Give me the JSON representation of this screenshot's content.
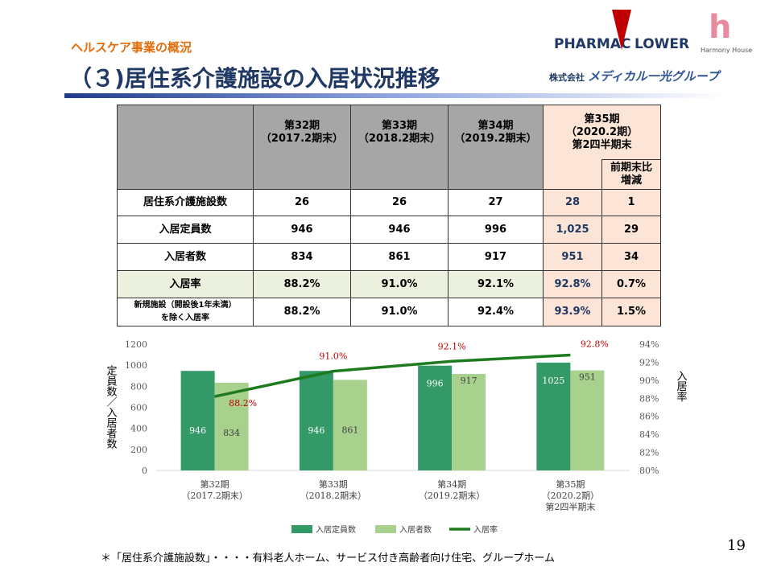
{
  "header": {
    "section": "ヘルスケア事業の概況",
    "title": "（３)居住系介護施設の入居状況推移"
  },
  "logos": {
    "pharmacy": "PHARMAC",
    "flower": "LOWER",
    "harmony": "Harmony House",
    "company": "株式会社",
    "group": "メディカル一光グループ"
  },
  "table": {
    "header": [
      "",
      "第32期\n（2017.2期末）",
      "第33期\n（2018.2期末）",
      "第34期\n（2019.2期末）",
      "第35期\n（2020.2期）\n第2四半期末"
    ],
    "subheader": "前期末比\n増減",
    "rows": [
      [
        "居住系介護施設数",
        "26",
        "26",
        "27",
        "28",
        "1"
      ],
      [
        "入居定員数",
        "946",
        "946",
        "996",
        "1,025",
        "29"
      ],
      [
        "入居者数",
        "834",
        "861",
        "917",
        "951",
        "34"
      ],
      [
        "入居率",
        "88.2%",
        "91.0%",
        "92.1%",
        "92.8%",
        "0.7%"
      ],
      [
        "新規施設（開設後1年未満）\nを除く入居率",
        "88.2%",
        "91.0%",
        "92.4%",
        "93.9%",
        "1.5%"
      ]
    ]
  },
  "chart_data": {
    "type": "bar_line",
    "categories": [
      "第32期\n（2017.2期末）",
      "第33期\n（2018.2期末）",
      "第34期\n（2019.2期末）",
      "第35期\n（2020.2期）\n第2四半期末"
    ],
    "y_label": "定員数／入居者数",
    "y2_label": "入居率",
    "series": [
      {
        "name": "入居定員数",
        "color": "#339966",
        "type": "bar",
        "values": [
          946,
          946,
          996,
          1025
        ]
      },
      {
        "name": "入居者数",
        "color": "#a9d18e",
        "type": "bar",
        "values": [
          834,
          861,
          917,
          951
        ]
      },
      {
        "name": "入居率",
        "color": "#1e7a1e",
        "type": "line",
        "axis": "y2",
        "values": [
          88.2,
          91.0,
          92.1,
          92.8
        ],
        "value_labels": [
          "88.2%",
          "91.0%",
          "92.1%",
          "92.8%"
        ]
      }
    ],
    "ylim": [
      0,
      1200
    ],
    "yticks": [
      0,
      200,
      400,
      600,
      800,
      1000,
      1200
    ],
    "y2lim": [
      80,
      94
    ],
    "y2ticks": [
      {
        "value": 80,
        "label": "80%"
      },
      {
        "value": 82,
        "label": "82%"
      },
      {
        "value": 84,
        "label": "84%"
      },
      {
        "value": 86,
        "label": "86%"
      },
      {
        "value": 88,
        "label": "88%"
      },
      {
        "value": 90,
        "label": "90%"
      },
      {
        "value": 92,
        "label": "92%"
      },
      {
        "value": 94,
        "label": "94%"
      }
    ],
    "legend": "bottom",
    "value_label_color": "#c00000"
  },
  "footnote": "＊「居住系介護施設数」・・・・有料老人ホーム、サービス付き高齢者向け住宅、グループホーム",
  "page_number": "19"
}
